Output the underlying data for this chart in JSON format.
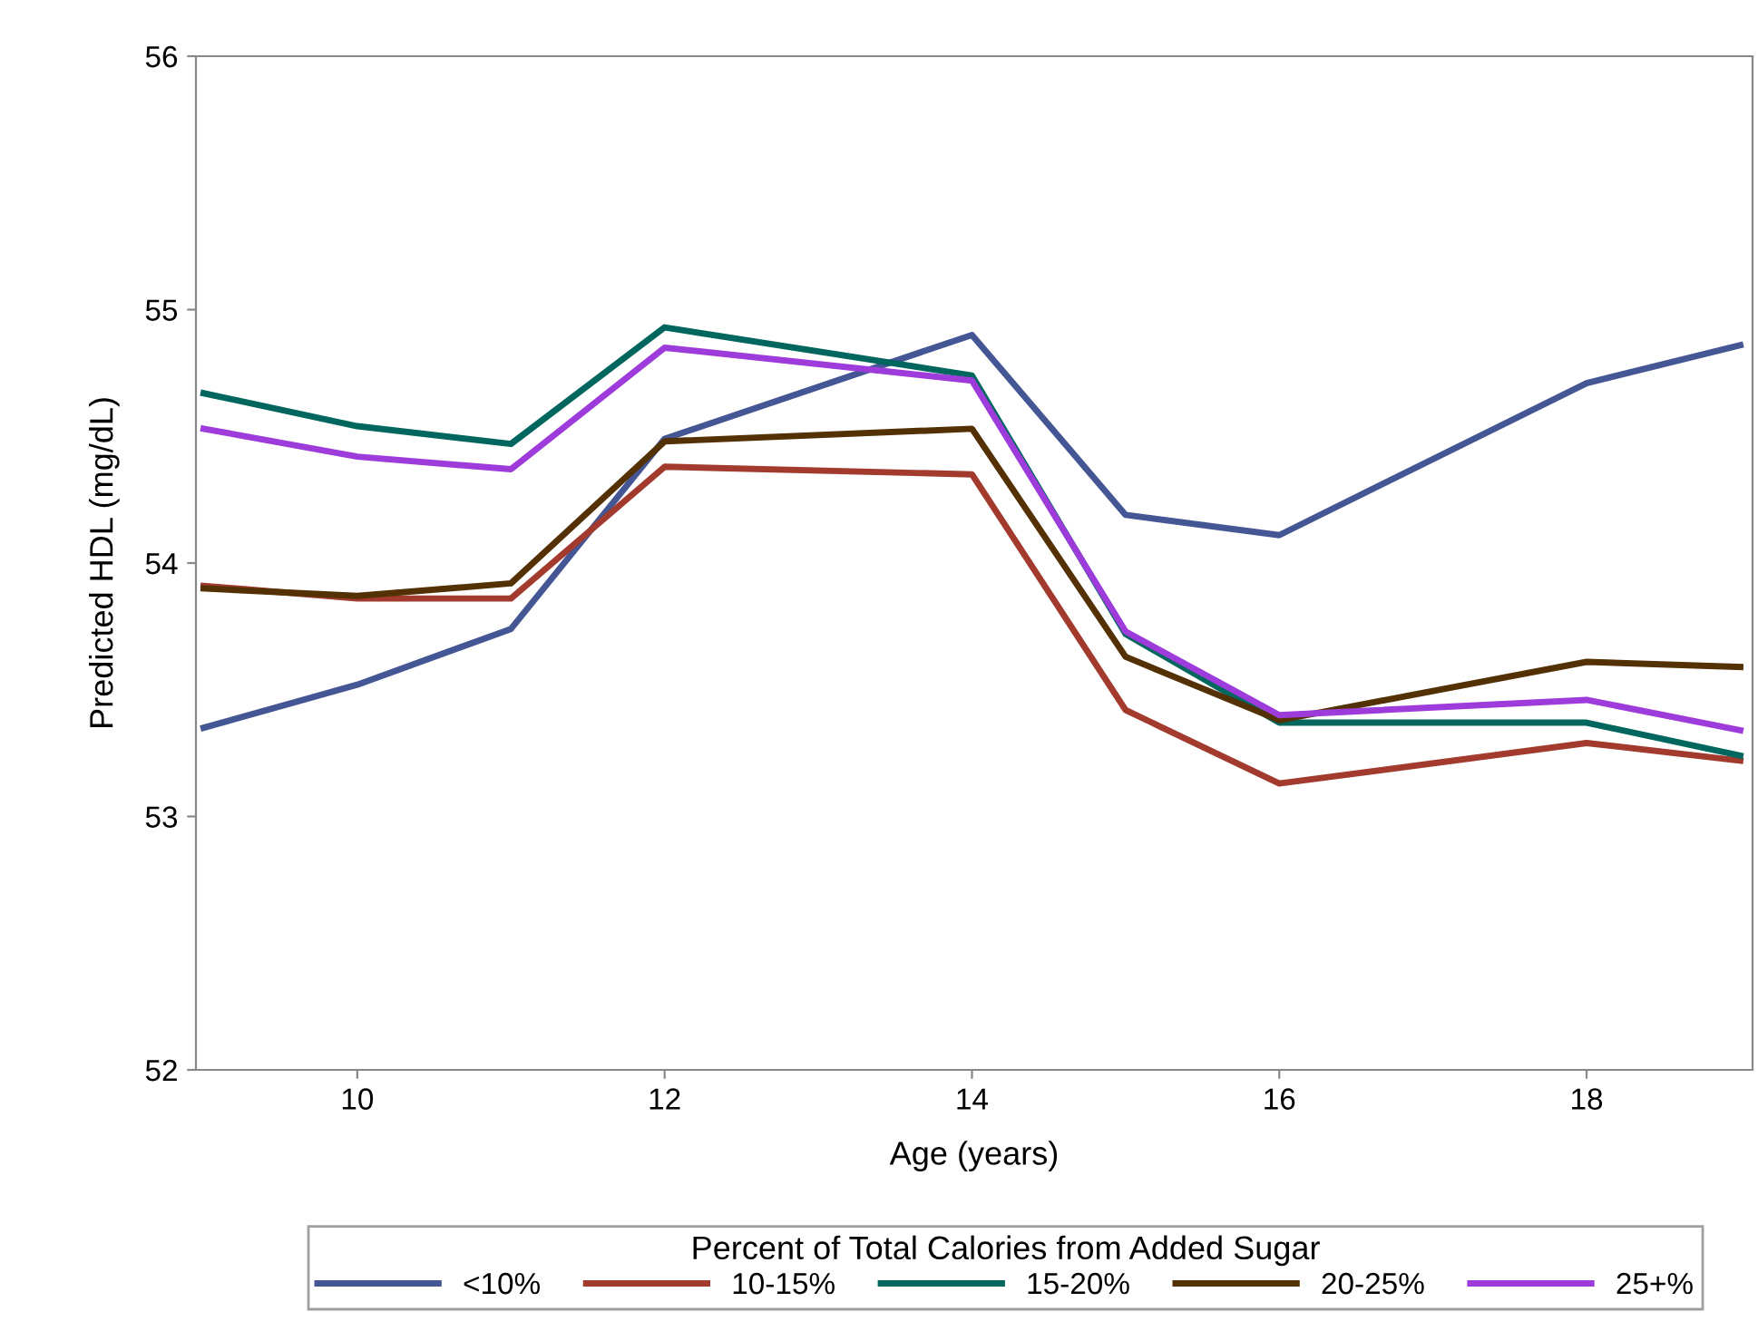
{
  "chart_data": {
    "type": "line",
    "xlabel": "Age (years)",
    "ylabel": "Predicted HDL (mg/dL)",
    "legend_title": "Percent of Total Calories from Added Sugar",
    "x": [
      9,
      10,
      11,
      12,
      14,
      15,
      16,
      18,
      19
    ],
    "series": [
      {
        "name": "<10%",
        "color": "#445694",
        "values": [
          53.35,
          53.52,
          53.74,
          54.49,
          54.9,
          54.19,
          54.11,
          54.71,
          54.86
        ]
      },
      {
        "name": "10-15%",
        "color": "#a23a2e",
        "values": [
          53.91,
          53.86,
          53.86,
          54.38,
          54.35,
          53.42,
          53.13,
          53.29,
          53.22
        ]
      },
      {
        "name": "15-20%",
        "color": "#01665e",
        "values": [
          54.67,
          54.54,
          54.47,
          54.93,
          54.74,
          53.72,
          53.37,
          53.37,
          53.24
        ]
      },
      {
        "name": "20-25%",
        "color": "#543005",
        "values": [
          53.9,
          53.87,
          53.92,
          54.48,
          54.53,
          53.63,
          53.38,
          53.61,
          53.59
        ]
      },
      {
        "name": "25+%",
        "color": "#9d3cdb",
        "values": [
          54.53,
          54.42,
          54.37,
          54.85,
          54.72,
          53.73,
          53.4,
          53.46,
          53.34
        ]
      }
    ],
    "xlim": [
      8.95,
      19.08
    ],
    "xticks": [
      10,
      12,
      14,
      16,
      18
    ],
    "ylim": [
      52,
      56
    ],
    "yticks": [
      52,
      53,
      54,
      55,
      56
    ],
    "grid": false,
    "legend": "bottom",
    "marker": "none",
    "line_style": "solid"
  }
}
